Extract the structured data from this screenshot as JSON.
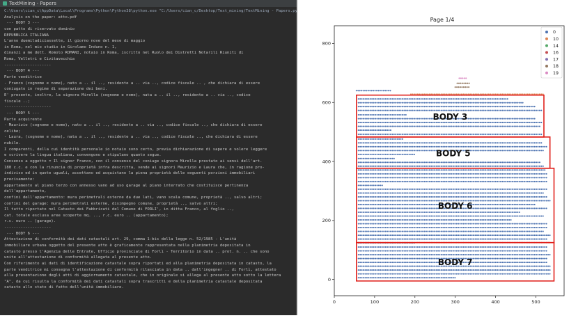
{
  "console": {
    "window_title": "TextMining - Papers",
    "lines": [
      "C:\\Users\\cian_c\\AppData\\Local\\Programs\\Python\\Python38\\python.exe \"C:/Users/cian_c/Desktop/Text_mining/TextMining - Papers.py\"",
      "Analysis on the paper: atto.pdf",
      " --- BODY 3 ---",
      "con patto di riservato dominio",
      "REPUBBLICA ITALIANA",
      "L'anno duemiladiciassette, il giorno nove del mese di maggio",
      "in Roma, nel mio studio in Girolamo Induno n. 1,",
      "dinanzi a me dott. Romolo ROMANI, notaio in Roma, iscritto nel Ruolo dei Distretti Notarili Riuniti di",
      "Roma, Velletri e Civitavecchia",
      "--------------------",
      " --- BODY 4 ---",
      "Parte venditrice",
      "- Franco (cognome e nome), nato a .. il .., residente a .. via .., codice fiscale .. , che dichiara di essere",
      "coniugato in regime di separazione dei beni.",
      "E' presente, inoltre, la signora Mirella (cognome e nome), nata a .. il .., residente a .. via .., codice",
      "fiscale ..;",
      "--------------------",
      " --- BODY 5 ---",
      "Parte acquirente",
      "- Maurizio (cognome e nome), nato a .. il .., residente a .. via .., codice fiscale .., che dichiara di essere",
      "celibe;",
      "- Laura, (cognome e nome), nata a .. il .., residente a .. via .., codice fiscale .., che dichiara di essere",
      "nubile.",
      "I comparenti, della cui identità personale io notaio sono certo, previa dichiarazione di sapere e volere leggere",
      "e scrivere la lingua italiana, convengono e stipulano quanto segue.",
      "Consenso a oggetto = Il signor Franco, con il consenso del coniuge signora Mirella prestato ai sensi dell'art.",
      "180 c.c. e con la rinuncia di proprietà infra descritta, vende ai signori Maurizio e Laura che, in ragione pro-",
      "indiviso ed in quote uguali, accettano ed acquistano la piena proprietà delle seguenti porzioni immobiliari",
      "precisamente:",
      "appartamento al piano terzo con annesso vano ad uso garage al piano interrato che costituisce pertinenza",
      "dell'appartamento,",
      "confini dell'appartamento: mura perimetrali esterne da due lati, vano scala comune, proprietà .., salvo altri;",
      "confini del garage: mura perimetrali esterne, disimpegno comune, proprietà .., salvo altri;",
      "Il tutto riportato nel Catasto dei Fabbricati del Comune di FORLI', in ditta Franco, al foglio ..,",
      "cat. totale esclusa aree scoperte mq. .., r.c. euro .. (appartamento);",
      "r.c. euro .. (garage).",
      "--------------------",
      " --- BODY 6 ---",
      "Attestazione di conformità dei dati catastali art. 29, comma 1-bis della legge n. 52/1985 - L'unità",
      "immobiliare urbana oggetto del presente atto è graficamente rappresentata nella planimetria depositata in",
      "catasto presso l'Agenzia delle Entrate, Ufficio provinciale di Forlì - Territorio in data .. prot. n. .. che sono",
      "unite all'attestazione di conformità allegata al presente atto.",
      "Con riferimento ai dati di identificazione catastale sopra riportati ed alla planimetria depositata in catasto, la",
      "parte venditrice mi consegna l'attestazione di conformità rilasciata in data .. dall'ingegner .. di Forlì, attestato",
      "alla presentazione degli atti di aggiornamento catastale, che in originale si allega al presente atto sotto la lettera",
      "\"A\", da cui risulta la conformità dei dati catastali sopra trascritti e della planimetria catastale depositata",
      "catasto allo stato di fatto dell'unità immobiliare."
    ]
  },
  "plot": {
    "title": "Page 1/4",
    "colors": {
      "0": "#4c72b0",
      "10": "#dd8452",
      "14": "#55a868",
      "16": "#c44e52",
      "17": "#8172b3",
      "18": "#937860",
      "19": "#da8bc3",
      "box": "#e0201b"
    },
    "labels": [
      {
        "text": "BODY 3"
      },
      {
        "text": "BODY 5"
      },
      {
        "text": "BODY 6"
      },
      {
        "text": "BODY 7"
      }
    ],
    "chart_data": {
      "type": "scatter",
      "title": "Page 1/4",
      "xlim": [
        0,
        570
      ],
      "ylim": [
        -55,
        860
      ],
      "x_ticks": [
        0,
        100,
        200,
        300,
        400,
        500
      ],
      "y_ticks": [
        0,
        200,
        400,
        600,
        800
      ],
      "legend": {
        "placement": "top-right",
        "entries": [
          "0",
          "10",
          "14",
          "16",
          "17",
          "18",
          "19"
        ]
      },
      "grid": false,
      "boxes": [
        {
          "label": "BODY 3",
          "x": [
            55,
            520
          ],
          "y": [
            483,
            625
          ]
        },
        {
          "label": "BODY 5",
          "x": [
            55,
            535
          ],
          "y": [
            377,
            483
          ]
        },
        {
          "label": "BODY 6",
          "x": [
            55,
            545
          ],
          "y": [
            125,
            377
          ]
        },
        {
          "label": "BODY 7",
          "x": [
            55,
            545
          ],
          "y": [
            -5,
            125
          ]
        }
      ],
      "series": [
        {
          "name": "0",
          "rows": [
            {
              "y": 640,
              "x": [
                55,
                140
              ]
            },
            {
              "y": 625,
              "x": [
                210,
                380
              ]
            },
            {
              "y": 612,
              "x": [
                60,
                430
              ]
            },
            {
              "y": 599,
              "x": [
                60,
                470
              ]
            },
            {
              "y": 586,
              "x": [
                60,
                500
              ]
            },
            {
              "y": 573,
              "x": [
                60,
                515
              ]
            },
            {
              "y": 558,
              "x": [
                60,
                180
              ]
            },
            {
              "y": 545,
              "x": [
                60,
                500
              ]
            },
            {
              "y": 532,
              "x": [
                60,
                515
              ]
            },
            {
              "y": 519,
              "x": [
                60,
                510
              ]
            },
            {
              "y": 506,
              "x": [
                60,
                140
              ]
            },
            {
              "y": 492,
              "x": [
                60,
                515
              ]
            },
            {
              "y": 476,
              "x": [
                60,
                170
              ]
            },
            {
              "y": 463,
              "x": [
                60,
                515
              ]
            },
            {
              "y": 450,
              "x": [
                60,
                530
              ]
            },
            {
              "y": 437,
              "x": [
                60,
                520
              ]
            },
            {
              "y": 424,
              "x": [
                60,
                200
              ]
            },
            {
              "y": 410,
              "x": [
                60,
                150
              ]
            },
            {
              "y": 397,
              "x": [
                60,
                510
              ]
            },
            {
              "y": 384,
              "x": [
                60,
                520
              ]
            },
            {
              "y": 371,
              "x": [
                60,
                525
              ]
            },
            {
              "y": 358,
              "x": [
                60,
                530
              ]
            },
            {
              "y": 345,
              "x": [
                60,
                530
              ]
            },
            {
              "y": 332,
              "x": [
                60,
                530
              ]
            },
            {
              "y": 319,
              "x": [
                60,
                120
              ]
            },
            {
              "y": 306,
              "x": [
                60,
                530
              ]
            },
            {
              "y": 293,
              "x": [
                60,
                520
              ]
            },
            {
              "y": 280,
              "x": [
                60,
                530
              ]
            },
            {
              "y": 267,
              "x": [
                60,
                535
              ]
            },
            {
              "y": 254,
              "x": [
                60,
                500
              ]
            },
            {
              "y": 241,
              "x": [
                60,
                530
              ]
            },
            {
              "y": 228,
              "x": [
                60,
                460
              ]
            },
            {
              "y": 215,
              "x": [
                60,
                520
              ]
            },
            {
              "y": 202,
              "x": [
                60,
                440
              ]
            },
            {
              "y": 189,
              "x": [
                60,
                530
              ]
            },
            {
              "y": 176,
              "x": [
                60,
                530
              ]
            },
            {
              "y": 163,
              "x": [
                60,
                520
              ]
            },
            {
              "y": 150,
              "x": [
                60,
                535
              ]
            },
            {
              "y": 137,
              "x": [
                60,
                530
              ]
            },
            {
              "y": 124,
              "x": [
                60,
                200
              ]
            },
            {
              "y": 110,
              "x": [
                60,
                530
              ]
            },
            {
              "y": 97,
              "x": [
                60,
                530
              ]
            },
            {
              "y": 84,
              "x": [
                60,
                535
              ]
            },
            {
              "y": 71,
              "x": [
                60,
                530
              ]
            },
            {
              "y": 58,
              "x": [
                60,
                530
              ]
            },
            {
              "y": 45,
              "x": [
                60,
                535
              ]
            },
            {
              "y": 32,
              "x": [
                60,
                535
              ]
            },
            {
              "y": 19,
              "x": [
                60,
                535
              ]
            },
            {
              "y": 6,
              "x": [
                60,
                300
              ]
            }
          ]
        },
        {
          "name": "10",
          "rows": [
            {
              "y": 628,
              "x": [
                190,
                520
              ]
            }
          ]
        },
        {
          "name": "16",
          "rows": [
            {
              "y": 125,
              "x": [
                60,
                535
              ]
            }
          ]
        },
        {
          "name": "18",
          "rows": [
            {
              "y": 665,
              "x": [
                305,
                335
              ]
            },
            {
              "y": 652,
              "x": [
                300,
                335
              ]
            }
          ]
        },
        {
          "name": "19",
          "rows": [
            {
              "y": 682,
              "x": [
                310,
                330
              ]
            }
          ]
        }
      ]
    }
  }
}
